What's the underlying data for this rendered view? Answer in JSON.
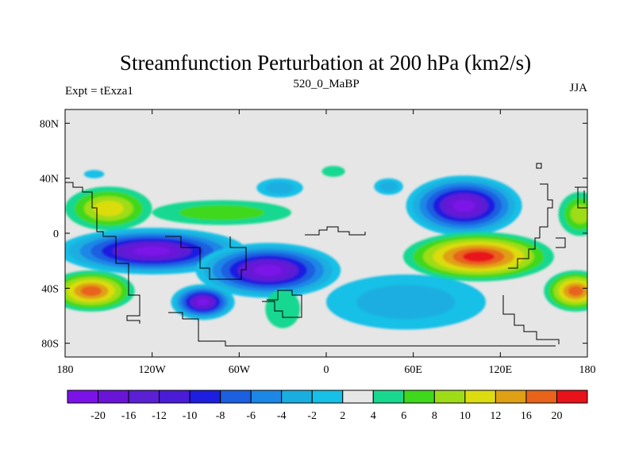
{
  "chart_data": {
    "type": "contour_map",
    "title": "Streamfunction Perturbation at 200 hPa (km2/s)",
    "left_label": "Expt = tExza1",
    "center_label": "520_0_MaBP",
    "right_label": "JJA",
    "x_axis": {
      "range": [
        -180,
        180
      ],
      "ticks": [
        -180,
        -120,
        -60,
        0,
        60,
        120,
        180
      ],
      "tick_labels": [
        "180",
        "120W",
        "60W",
        "0",
        "60E",
        "120E",
        "180"
      ]
    },
    "y_axis": {
      "range": [
        -90,
        90
      ],
      "ticks": [
        80,
        40,
        0,
        -40,
        -80
      ],
      "tick_labels": [
        "80N",
        "40N",
        "0",
        "40S",
        "80S"
      ]
    },
    "colorbar": {
      "levels": [
        "-20",
        "-16",
        "-12",
        "-10",
        "-8",
        "-6",
        "-4",
        "-2",
        "2",
        "4",
        "6",
        "8",
        "10",
        "12",
        "16",
        "20"
      ],
      "colors": [
        "#7b12e8",
        "#6a14d8",
        "#5b1fd4",
        "#1e1ee0",
        "#1c5fe0",
        "#1c87e6",
        "#1aaee0",
        "#16c0e6",
        "#e6e6e6",
        "#18d890",
        "#40d81c",
        "#9edc18",
        "#dcdc10",
        "#e0a014",
        "#e8641a",
        "#e8121a"
      ]
    },
    "features": [
      {
        "name": "pos-northamerica-atlantic",
        "lon": -72,
        "lat": 15,
        "rx": 48,
        "ry": 9,
        "value": 6
      },
      {
        "name": "pos-pacific-north",
        "lon": -150,
        "lat": 18,
        "rx": 30,
        "ry": 16,
        "value": 10
      },
      {
        "name": "pos-pacific-north-east",
        "lon": 175,
        "lat": 14,
        "rx": 15,
        "ry": 16,
        "value": 8
      },
      {
        "name": "pos-arabia",
        "lon": 5,
        "lat": 45,
        "rx": 8,
        "ry": 4,
        "value": 4
      },
      {
        "name": "neg-asia",
        "lon": 95,
        "lat": 20,
        "rx": 40,
        "ry": 22,
        "value": -20
      },
      {
        "name": "neg-atlantic-north",
        "lon": -32,
        "lat": 33,
        "rx": 16,
        "ry": 7,
        "value": -4
      },
      {
        "name": "neg-north-africa",
        "lon": 43,
        "lat": 34,
        "rx": 10,
        "ry": 6,
        "value": -4
      },
      {
        "name": "neg-pacific-tiny",
        "lon": -160,
        "lat": 43,
        "rx": 7,
        "ry": 3,
        "value": -2
      },
      {
        "name": "neg-southern-belt-west",
        "lon": -120,
        "lat": -13,
        "rx": 65,
        "ry": 17,
        "value": -20
      },
      {
        "name": "neg-southern-belt-center",
        "lon": -40,
        "lat": -27,
        "rx": 50,
        "ry": 20,
        "value": -20
      },
      {
        "name": "neg-south-america-east",
        "lon": -85,
        "lat": -50,
        "rx": 22,
        "ry": 13,
        "value": -20
      },
      {
        "name": "neg-south-indian",
        "lon": 55,
        "lat": -50,
        "rx": 55,
        "ry": 20,
        "value": -4
      },
      {
        "name": "pos-indian-ocean",
        "lon": 105,
        "lat": -17,
        "rx": 52,
        "ry": 18,
        "value": 20
      },
      {
        "name": "pos-south-pacific-east",
        "lon": -162,
        "lat": -42,
        "rx": 30,
        "ry": 15,
        "value": 16
      },
      {
        "name": "pos-south-pacific-west",
        "lon": 172,
        "lat": -42,
        "rx": 22,
        "ry": 15,
        "value": 16
      },
      {
        "name": "pos-south-atlantic",
        "lon": -30,
        "lat": -55,
        "rx": 12,
        "ry": 14,
        "value": 4
      }
    ]
  }
}
